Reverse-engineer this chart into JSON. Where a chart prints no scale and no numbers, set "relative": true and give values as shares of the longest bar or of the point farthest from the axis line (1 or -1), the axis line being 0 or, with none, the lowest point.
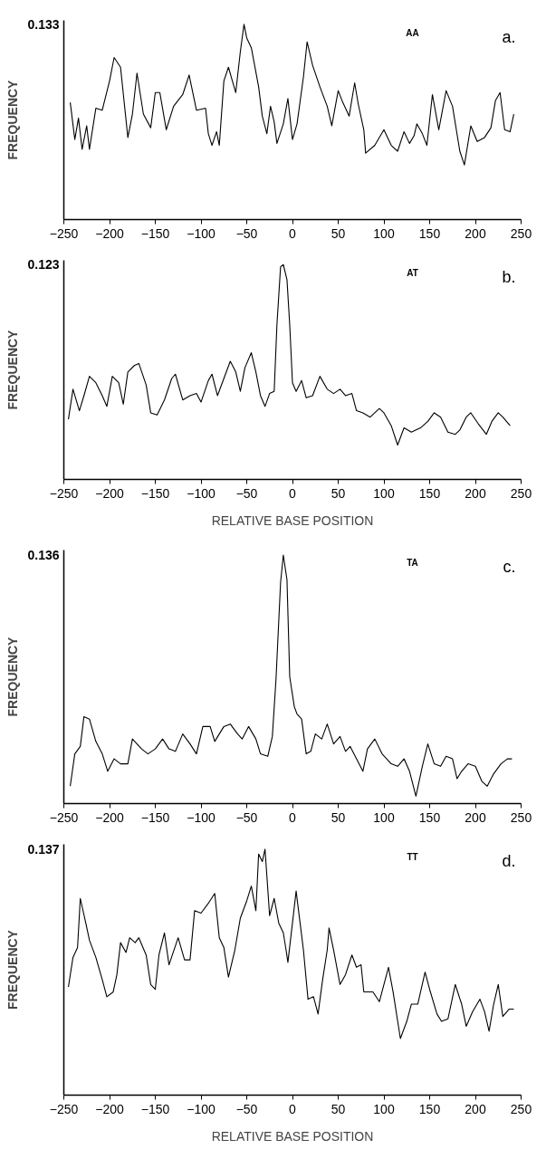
{
  "chart_data": [
    {
      "type": "line",
      "relative": true,
      "ylabel": "FREQUENCY",
      "annotations": [
        "0.133",
        "AA",
        "a."
      ],
      "xlim": [
        -250,
        250
      ],
      "xticks": [
        -250,
        -200,
        -150,
        -100,
        -50,
        0,
        50,
        100,
        150,
        200,
        250
      ],
      "grid": false,
      "series": [
        {
          "color": "#000000",
          "x": [
            -243,
            -238,
            -234,
            -230,
            -225,
            -222,
            -215,
            -208,
            -200,
            -195,
            -188,
            -180,
            -175,
            -170,
            -163,
            -155,
            -150,
            -145,
            -138,
            -130,
            -120,
            -113,
            -105,
            -95,
            -92,
            -88,
            -83,
            -80,
            -75,
            -70,
            -62,
            -57,
            -53,
            -50,
            -45,
            -37,
            -33,
            -28,
            -24,
            -20,
            -17,
            -10,
            -5,
            0,
            5,
            12,
            16,
            22,
            30,
            38,
            43,
            50,
            55,
            62,
            68,
            72,
            78,
            80,
            90,
            100,
            108,
            115,
            122,
            128,
            133,
            136,
            142,
            147,
            153,
            160,
            168,
            175,
            183,
            188,
            195,
            202,
            210,
            217,
            222,
            227,
            232,
            238,
            242
          ],
          "values": [
            0.6,
            0.41,
            0.52,
            0.36,
            0.48,
            0.36,
            0.57,
            0.56,
            0.71,
            0.83,
            0.78,
            0.42,
            0.54,
            0.75,
            0.54,
            0.47,
            0.65,
            0.65,
            0.46,
            0.58,
            0.64,
            0.74,
            0.56,
            0.57,
            0.44,
            0.38,
            0.45,
            0.38,
            0.71,
            0.78,
            0.65,
            0.86,
            1.0,
            0.93,
            0.88,
            0.68,
            0.53,
            0.44,
            0.58,
            0.5,
            0.39,
            0.49,
            0.62,
            0.41,
            0.49,
            0.73,
            0.91,
            0.79,
            0.68,
            0.58,
            0.48,
            0.66,
            0.6,
            0.53,
            0.7,
            0.59,
            0.46,
            0.34,
            0.38,
            0.46,
            0.38,
            0.35,
            0.45,
            0.39,
            0.43,
            0.49,
            0.44,
            0.38,
            0.64,
            0.46,
            0.66,
            0.58,
            0.35,
            0.28,
            0.48,
            0.4,
            0.42,
            0.47,
            0.61,
            0.65,
            0.46,
            0.45,
            0.54
          ]
        }
      ]
    },
    {
      "type": "line",
      "relative": true,
      "ylabel": "FREQUENCY",
      "xlabel": "RELATIVE BASE POSITION",
      "annotations": [
        "0.123",
        "AT",
        "b."
      ],
      "xlim": [
        -250,
        250
      ],
      "xticks": [
        -250,
        -200,
        -150,
        -100,
        -50,
        0,
        50,
        100,
        150,
        200,
        250
      ],
      "grid": false,
      "series": [
        {
          "color": "#000000",
          "x": [
            -245,
            -240,
            -233,
            -228,
            -222,
            -215,
            -208,
            -203,
            -197,
            -190,
            -185,
            -180,
            -173,
            -168,
            -160,
            -155,
            -148,
            -140,
            -132,
            -128,
            -120,
            -112,
            -105,
            -100,
            -92,
            -88,
            -82,
            -75,
            -68,
            -62,
            -57,
            -52,
            -45,
            -40,
            -35,
            -30,
            -25,
            -20,
            -17,
            -13,
            -10,
            -6,
            -3,
            0,
            4,
            10,
            15,
            22,
            30,
            38,
            45,
            52,
            58,
            65,
            70,
            77,
            85,
            95,
            100,
            108,
            115,
            122,
            130,
            140,
            148,
            155,
            162,
            170,
            178,
            183,
            190,
            195,
            203,
            212,
            218,
            225,
            230,
            238
          ],
          "values": [
            0.28,
            0.42,
            0.32,
            0.39,
            0.48,
            0.45,
            0.39,
            0.34,
            0.48,
            0.45,
            0.35,
            0.5,
            0.53,
            0.54,
            0.44,
            0.31,
            0.3,
            0.37,
            0.47,
            0.49,
            0.37,
            0.39,
            0.4,
            0.36,
            0.46,
            0.49,
            0.39,
            0.47,
            0.55,
            0.5,
            0.41,
            0.52,
            0.59,
            0.5,
            0.39,
            0.34,
            0.4,
            0.41,
            0.72,
            0.99,
            1.0,
            0.93,
            0.72,
            0.45,
            0.41,
            0.46,
            0.38,
            0.39,
            0.48,
            0.42,
            0.4,
            0.42,
            0.39,
            0.4,
            0.32,
            0.31,
            0.29,
            0.33,
            0.31,
            0.25,
            0.16,
            0.24,
            0.22,
            0.24,
            0.27,
            0.31,
            0.29,
            0.22,
            0.21,
            0.23,
            0.29,
            0.31,
            0.26,
            0.21,
            0.27,
            0.31,
            0.29,
            0.25
          ]
        }
      ]
    },
    {
      "type": "line",
      "relative": true,
      "ylabel": "FREQUENCY",
      "annotations": [
        "0.136",
        "TA",
        "c."
      ],
      "xlim": [
        -250,
        250
      ],
      "xticks": [
        -250,
        -200,
        -150,
        -100,
        -50,
        0,
        50,
        100,
        150,
        200,
        250
      ],
      "grid": false,
      "series": [
        {
          "color": "#000000",
          "x": [
            -243,
            -238,
            -232,
            -228,
            -222,
            -215,
            -208,
            -202,
            -195,
            -188,
            -180,
            -175,
            -165,
            -158,
            -150,
            -142,
            -135,
            -128,
            -120,
            -112,
            -105,
            -98,
            -90,
            -85,
            -75,
            -68,
            -60,
            -55,
            -48,
            -40,
            -35,
            -27,
            -22,
            -18,
            -13,
            -10,
            -6,
            -3,
            2,
            5,
            10,
            15,
            20,
            25,
            32,
            38,
            45,
            52,
            58,
            63,
            70,
            77,
            82,
            90,
            98,
            108,
            115,
            122,
            128,
            135,
            142,
            148,
            155,
            162,
            168,
            175,
            180,
            185,
            192,
            200,
            207,
            213,
            220,
            228,
            235,
            240
          ],
          "values": [
            0.07,
            0.2,
            0.23,
            0.35,
            0.34,
            0.25,
            0.2,
            0.13,
            0.18,
            0.16,
            0.16,
            0.26,
            0.22,
            0.2,
            0.22,
            0.26,
            0.22,
            0.21,
            0.28,
            0.24,
            0.2,
            0.31,
            0.31,
            0.25,
            0.31,
            0.32,
            0.28,
            0.26,
            0.31,
            0.26,
            0.2,
            0.19,
            0.27,
            0.5,
            0.89,
            1.0,
            0.9,
            0.51,
            0.39,
            0.36,
            0.34,
            0.2,
            0.21,
            0.28,
            0.26,
            0.32,
            0.24,
            0.27,
            0.21,
            0.23,
            0.18,
            0.13,
            0.22,
            0.26,
            0.2,
            0.16,
            0.15,
            0.18,
            0.13,
            0.03,
            0.15,
            0.24,
            0.16,
            0.15,
            0.19,
            0.18,
            0.1,
            0.13,
            0.16,
            0.15,
            0.09,
            0.07,
            0.12,
            0.16,
            0.18,
            0.18
          ]
        }
      ]
    },
    {
      "type": "line",
      "relative": true,
      "ylabel": "FREQUENCY",
      "xlabel": "RELATIVE BASE POSITION",
      "annotations": [
        "0.137",
        "TT",
        "d."
      ],
      "xlim": [
        -250,
        250
      ],
      "xticks": [
        -250,
        -200,
        -150,
        -100,
        -50,
        0,
        50,
        100,
        150,
        200,
        250
      ],
      "grid": false,
      "series": [
        {
          "color": "#000000",
          "x": [
            -245,
            -240,
            -235,
            -232,
            -226,
            -222,
            -215,
            -208,
            -203,
            -196,
            -192,
            -188,
            -182,
            -178,
            -172,
            -168,
            -160,
            -155,
            -150,
            -146,
            -140,
            -135,
            -125,
            -118,
            -112,
            -107,
            -100,
            -92,
            -85,
            -80,
            -75,
            -70,
            -63,
            -57,
            -50,
            -45,
            -40,
            -37,
            -33,
            -30,
            -25,
            -20,
            -15,
            -10,
            -7,
            -5,
            0,
            4,
            8,
            12,
            17,
            23,
            28,
            33,
            38,
            40,
            45,
            52,
            58,
            65,
            70,
            75,
            78,
            88,
            95,
            105,
            110,
            118,
            125,
            130,
            137,
            145,
            150,
            158,
            163,
            170,
            178,
            185,
            190,
            197,
            205,
            210,
            215,
            220,
            225,
            230,
            237,
            242
          ],
          "values": [
            0.44,
            0.56,
            0.6,
            0.8,
            0.7,
            0.63,
            0.56,
            0.47,
            0.4,
            0.42,
            0.49,
            0.62,
            0.58,
            0.64,
            0.62,
            0.64,
            0.57,
            0.45,
            0.43,
            0.57,
            0.66,
            0.53,
            0.64,
            0.55,
            0.55,
            0.75,
            0.74,
            0.78,
            0.82,
            0.64,
            0.6,
            0.48,
            0.59,
            0.72,
            0.79,
            0.85,
            0.75,
            0.98,
            0.95,
            1.0,
            0.73,
            0.8,
            0.7,
            0.66,
            0.59,
            0.54,
            0.7,
            0.83,
            0.71,
            0.59,
            0.39,
            0.4,
            0.33,
            0.47,
            0.59,
            0.68,
            0.59,
            0.45,
            0.49,
            0.57,
            0.52,
            0.53,
            0.42,
            0.42,
            0.38,
            0.52,
            0.42,
            0.23,
            0.3,
            0.37,
            0.37,
            0.5,
            0.43,
            0.33,
            0.3,
            0.31,
            0.45,
            0.37,
            0.28,
            0.34,
            0.39,
            0.34,
            0.26,
            0.37,
            0.45,
            0.32,
            0.35,
            0.35
          ]
        }
      ]
    }
  ]
}
